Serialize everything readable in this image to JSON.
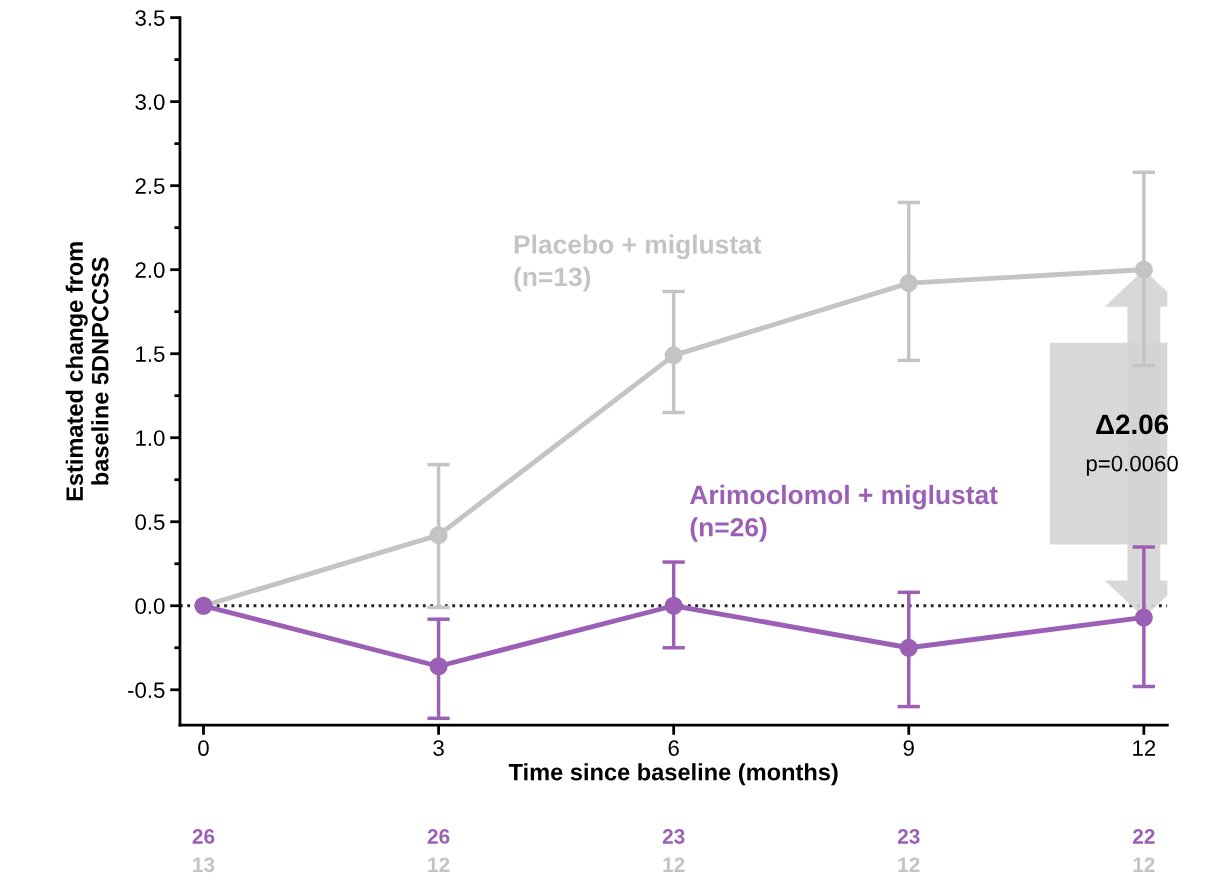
{
  "chart_data": {
    "type": "line",
    "xlabel": "Time since baseline (months)",
    "ylabel": "Estimated change from\nbaseline 5DNPCCSS",
    "x": [
      0,
      3,
      6,
      9,
      12
    ],
    "series": [
      {
        "name": "Placebo + miglustat\n(n=13)",
        "color": "#c4c4c4",
        "values": [
          0,
          0.42,
          1.49,
          1.92,
          2.0
        ],
        "errors": [
          null,
          [
            -0.01,
            0.84
          ],
          [
            1.15,
            1.87
          ],
          [
            1.46,
            2.4
          ],
          [
            1.43,
            2.58
          ]
        ]
      },
      {
        "name": "Arimoclomol + miglustat\n(n=26)",
        "color": "#9b5fb5",
        "values": [
          0,
          -0.36,
          0.0,
          -0.25,
          -0.07
        ],
        "errors": [
          null,
          [
            -0.67,
            -0.08
          ],
          [
            -0.25,
            0.26
          ],
          [
            -0.6,
            0.08
          ],
          [
            -0.48,
            0.35
          ]
        ]
      }
    ],
    "xlim": [
      -0.3,
      12.3
    ],
    "xticks": [
      0,
      3,
      6,
      9,
      12
    ],
    "ylim": [
      -0.71,
      3.5
    ],
    "yticks": [
      {
        "value": -0.5,
        "label": "-0.5"
      },
      {
        "value": 0,
        "label": "0.0"
      },
      {
        "value": 0.5,
        "label": "0.5"
      },
      {
        "value": 1,
        "label": "1.0"
      },
      {
        "value": 1.5,
        "label": "1.5"
      },
      {
        "value": 2,
        "label": "2.0"
      },
      {
        "value": 2.5,
        "label": "2.5"
      },
      {
        "value": 3,
        "label": "3.0"
      },
      {
        "value": 3.5,
        "label": "3.5"
      }
    ],
    "ref_lines": [
      {
        "axis": "y",
        "value": 0,
        "color": "#222222",
        "line_style": "dotted"
      }
    ],
    "marker": "circle",
    "grid": false,
    "legend": false,
    "annotations": [
      "Δ2.06",
      "p=0.0060",
      "26",
      "26",
      "23",
      "23",
      "22",
      "13",
      "12",
      "12",
      "12",
      "12"
    ]
  }
}
